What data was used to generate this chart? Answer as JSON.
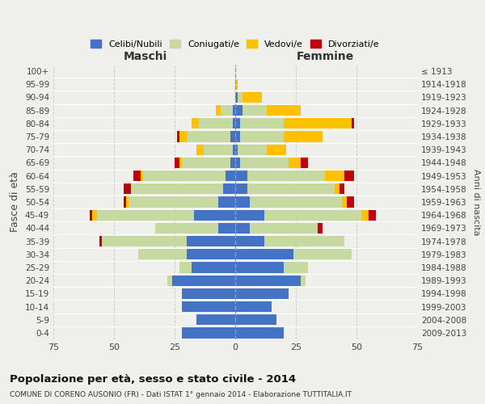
{
  "age_groups": [
    "0-4",
    "5-9",
    "10-14",
    "15-19",
    "20-24",
    "25-29",
    "30-34",
    "35-39",
    "40-44",
    "45-49",
    "50-54",
    "55-59",
    "60-64",
    "65-69",
    "70-74",
    "75-79",
    "80-84",
    "85-89",
    "90-94",
    "95-99",
    "100+"
  ],
  "birth_years": [
    "2009-2013",
    "2004-2008",
    "1999-2003",
    "1994-1998",
    "1989-1993",
    "1984-1988",
    "1979-1983",
    "1974-1978",
    "1969-1973",
    "1964-1968",
    "1959-1963",
    "1954-1958",
    "1949-1953",
    "1944-1948",
    "1939-1943",
    "1934-1938",
    "1929-1933",
    "1924-1928",
    "1919-1923",
    "1914-1918",
    "≤ 1913"
  ],
  "males": {
    "celibe": [
      22,
      16,
      22,
      22,
      26,
      18,
      20,
      20,
      7,
      17,
      7,
      5,
      4,
      2,
      1,
      2,
      1,
      1,
      0,
      0,
      0
    ],
    "coniugato": [
      0,
      0,
      0,
      0,
      2,
      5,
      20,
      35,
      26,
      40,
      37,
      38,
      34,
      20,
      12,
      18,
      14,
      5,
      0,
      0,
      0
    ],
    "vedovo": [
      0,
      0,
      0,
      0,
      0,
      0,
      0,
      0,
      0,
      2,
      1,
      0,
      1,
      1,
      3,
      3,
      3,
      2,
      0,
      0,
      0
    ],
    "divorziato": [
      0,
      0,
      0,
      0,
      0,
      0,
      0,
      1,
      0,
      1,
      1,
      3,
      3,
      2,
      0,
      1,
      0,
      0,
      0,
      0,
      0
    ]
  },
  "females": {
    "celibe": [
      20,
      17,
      15,
      22,
      27,
      20,
      24,
      12,
      6,
      12,
      6,
      5,
      5,
      2,
      1,
      2,
      2,
      3,
      1,
      0,
      0
    ],
    "coniugato": [
      0,
      0,
      0,
      0,
      2,
      10,
      24,
      33,
      28,
      40,
      38,
      36,
      32,
      20,
      12,
      18,
      18,
      10,
      2,
      0,
      0
    ],
    "vedovo": [
      0,
      0,
      0,
      0,
      0,
      0,
      0,
      0,
      0,
      3,
      2,
      2,
      8,
      5,
      8,
      16,
      28,
      14,
      8,
      1,
      0
    ],
    "divorziato": [
      0,
      0,
      0,
      0,
      0,
      0,
      0,
      0,
      2,
      3,
      3,
      2,
      4,
      3,
      0,
      0,
      1,
      0,
      0,
      0,
      0
    ]
  },
  "colors": {
    "celibe": "#4472c4",
    "coniugato": "#c5d9a0",
    "vedovo": "#ffc000",
    "divorziato": "#c0000b"
  },
  "legend_labels": [
    "Celibi/Nubili",
    "Coniugati/e",
    "Vedovi/e",
    "Divorziati/e"
  ],
  "xlim": 75,
  "title": "Popolazione per età, sesso e stato civile - 2014",
  "subtitle": "COMUNE DI CORENO AUSONIO (FR) - Dati ISTAT 1° gennaio 2014 - Elaborazione TUTTITALIA.IT",
  "ylabel": "Fasce di età",
  "ylabel_right": "Anni di nascita",
  "xlabel_left": "Maschi",
  "xlabel_right": "Femmine",
  "bg_color": "#efefeb"
}
